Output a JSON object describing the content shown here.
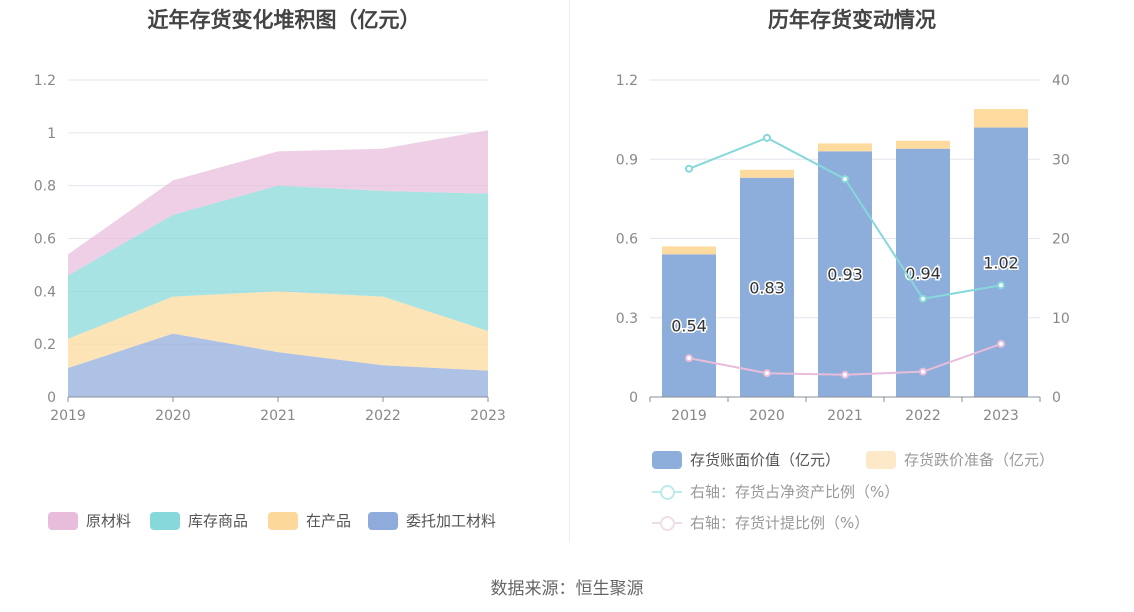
{
  "footer": {
    "source": "数据来源：恒生聚源"
  },
  "chart_data": [
    {
      "type": "area",
      "stacked": true,
      "title": "近年存货变化堆积图（亿元）",
      "x": [
        "2019",
        "2020",
        "2021",
        "2022",
        "2023"
      ],
      "ylim": [
        0,
        1.2
      ],
      "yticks": [
        "0",
        "0.2",
        "0.4",
        "0.6",
        "0.8",
        "1",
        "1.2"
      ],
      "grid": true,
      "legend_position": "bottom",
      "series": [
        {
          "name": "委托加工材料",
          "color": "#8fabdc",
          "values": [
            0.11,
            0.24,
            0.17,
            0.12,
            0.1
          ]
        },
        {
          "name": "在产品",
          "color": "#fcd99b",
          "values": [
            0.11,
            0.14,
            0.23,
            0.26,
            0.15
          ]
        },
        {
          "name": "库存商品",
          "color": "#86d8da",
          "values": [
            0.24,
            0.31,
            0.4,
            0.4,
            0.52
          ]
        },
        {
          "name": "原材料",
          "color": "#e8bddb",
          "values": [
            0.08,
            0.13,
            0.13,
            0.16,
            0.24
          ]
        }
      ]
    },
    {
      "type": "bar",
      "stacked": true,
      "title": "历年存货变动情况",
      "categories": [
        "2019",
        "2020",
        "2021",
        "2022",
        "2023"
      ],
      "ylim": [
        0,
        1.2
      ],
      "yticks": [
        "0",
        "0.3",
        "0.6",
        "0.9",
        "1.2"
      ],
      "y2lim": [
        0,
        40
      ],
      "y2ticks": [
        "0",
        "10",
        "20",
        "30",
        "40"
      ],
      "grid": true,
      "legend_position": "bottom",
      "bar_series": [
        {
          "name": "存货账面价值（亿元）",
          "color": "#8dadda",
          "values": [
            0.54,
            0.83,
            0.93,
            0.94,
            1.02
          ],
          "labels": [
            "0.54",
            "0.83",
            "0.93",
            "0.94",
            "1.02"
          ]
        },
        {
          "name": "存货跌价准备（亿元）",
          "color": "#fddb9e",
          "values": [
            0.03,
            0.03,
            0.03,
            0.03,
            0.07
          ]
        }
      ],
      "line_series": [
        {
          "name": "右轴：存货占净资产比例（%）",
          "color": "#86d8da",
          "axis": "right",
          "values": [
            28.8,
            32.7,
            27.5,
            12.4,
            14.1
          ]
        },
        {
          "name": "右轴：存货计提比例（%）",
          "color": "#e8bddb",
          "axis": "right",
          "values": [
            4.9,
            3.0,
            2.8,
            3.2,
            6.7
          ]
        }
      ]
    }
  ]
}
